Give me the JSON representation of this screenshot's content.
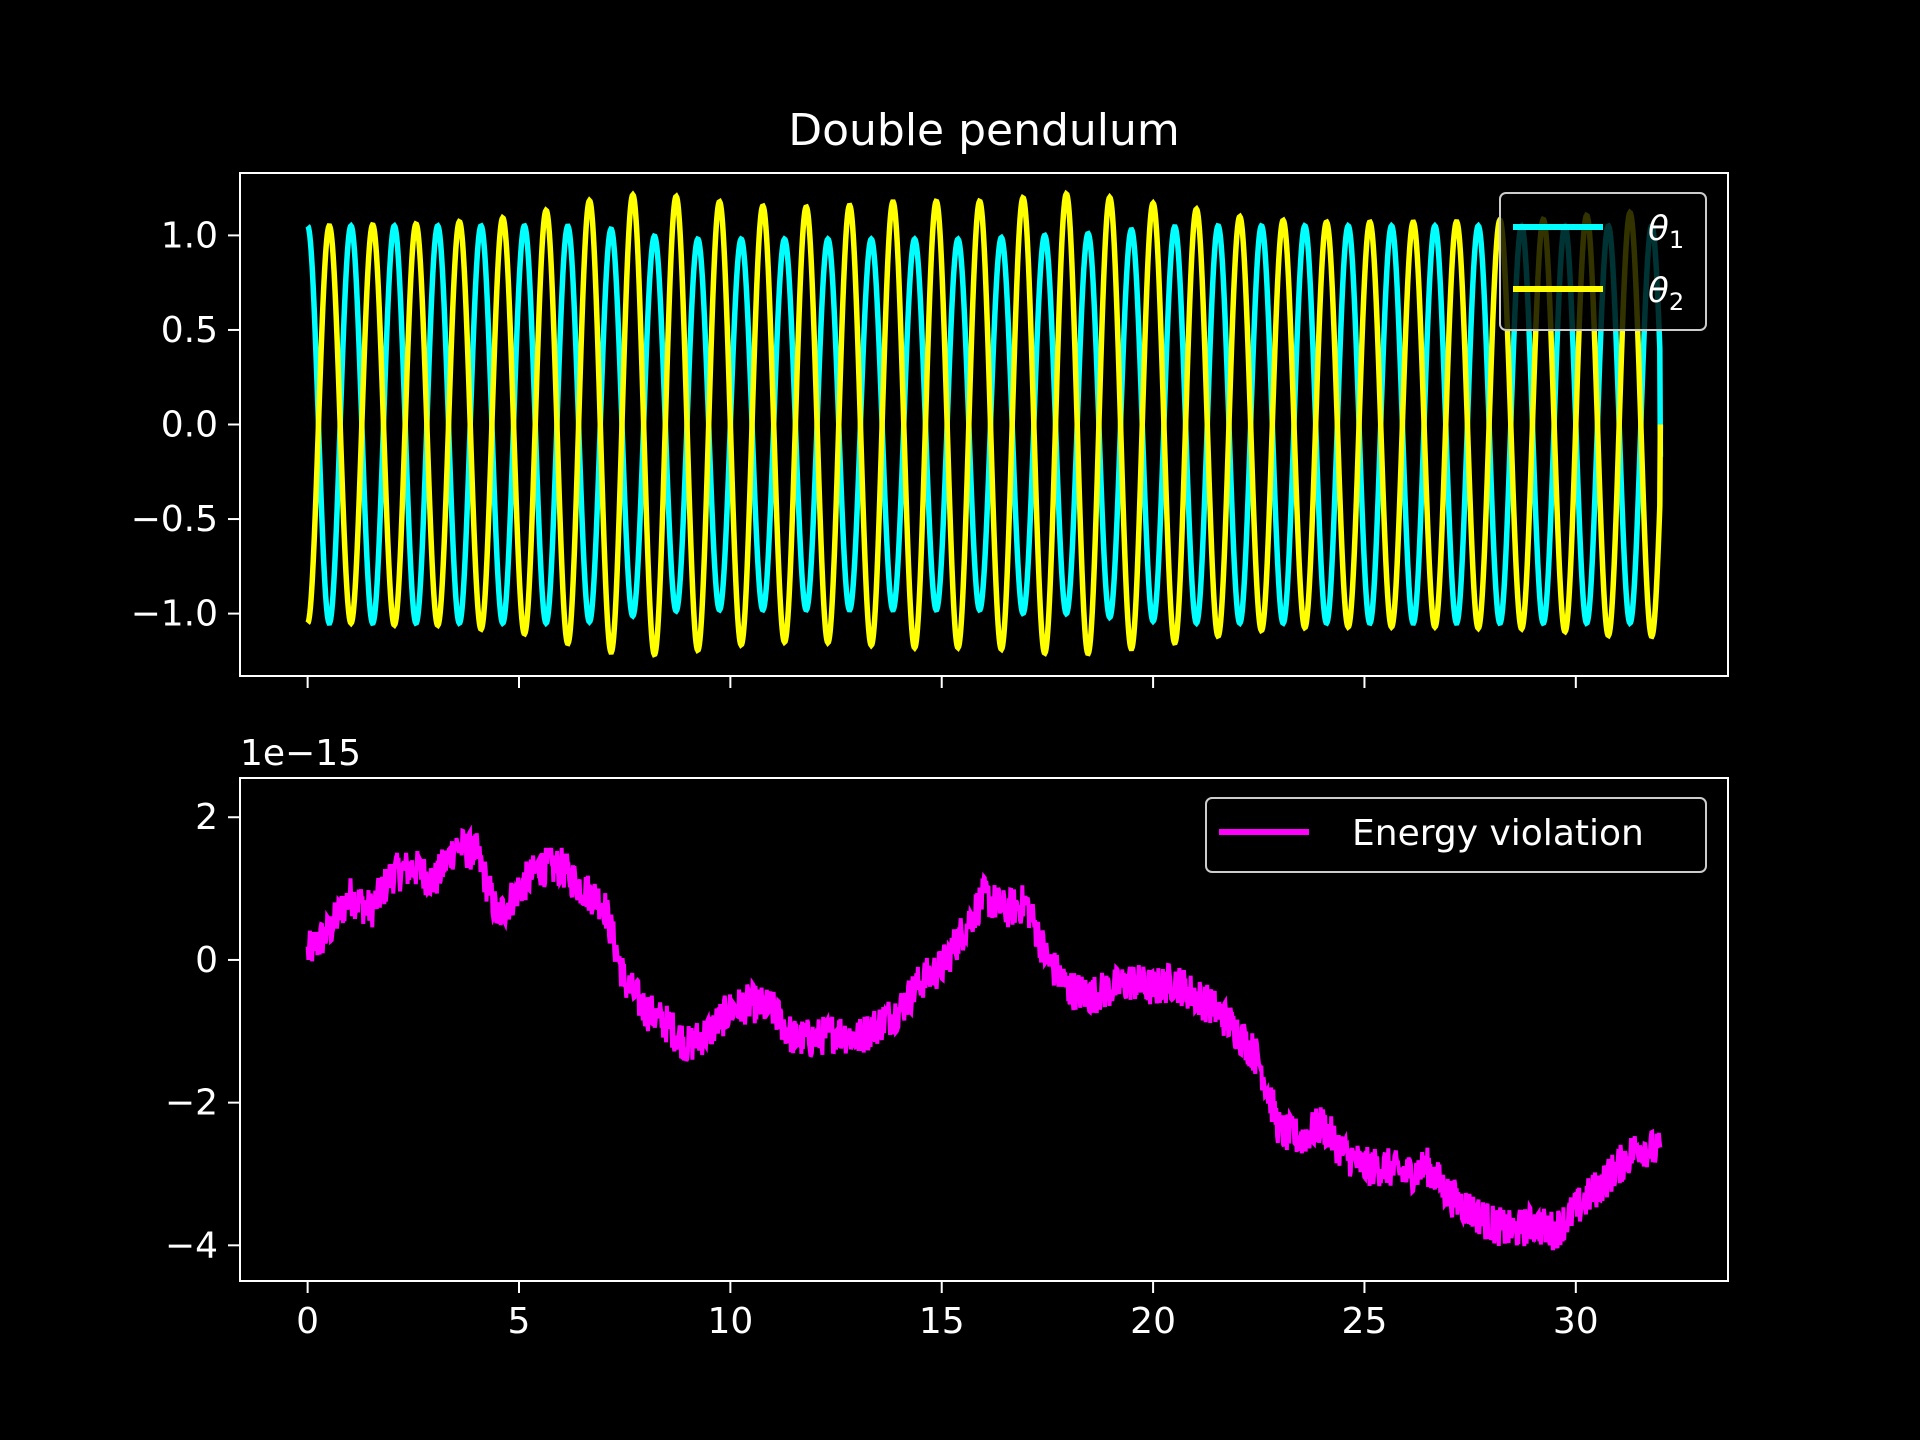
{
  "chart_data": [
    {
      "type": "line",
      "title": "Double pendulum",
      "xlabel": "",
      "ylabel": "",
      "xlim": [
        -1.6,
        33.6
      ],
      "ylim": [
        -1.33,
        1.33
      ],
      "xticks": [
        0,
        5,
        10,
        15,
        20,
        25,
        30
      ],
      "show_xtick_labels": false,
      "yticks": [
        1.0,
        0.5,
        0.0,
        -0.5,
        -1.0
      ],
      "ytick_labels": [
        "1.0",
        "0.5",
        "0.0",
        "−0.5",
        "−1.0"
      ],
      "grid": false,
      "legend_position": "top-right",
      "legend": [
        {
          "symbol": "θ",
          "subscript": "1",
          "color": "#00ffff"
        },
        {
          "symbol": "θ",
          "subscript": "2",
          "color": "#ffff00"
        }
      ],
      "series": [
        {
          "color": "#00ffff",
          "t_end": 32,
          "x": [
            0,
            0.1,
            1.0,
            2.0,
            3.0,
            4.0,
            5.0,
            6.0,
            7.0,
            8.0,
            9.0,
            10.0,
            11.0,
            12.0,
            13.0,
            14.0,
            15.0,
            16.0,
            17.0,
            18.0,
            19.0,
            20.0,
            21.0,
            22.0,
            23.0,
            24.0,
            25.0,
            26.0,
            27.0,
            28.0,
            29.0,
            30.0,
            31.0,
            32.0
          ],
          "amplitude": [
            1.05,
            1.05,
            1.05,
            1.05,
            1.05,
            1.05,
            1.05,
            1.05,
            1.04,
            1.0,
            0.98,
            0.98,
            0.98,
            0.98,
            0.98,
            0.98,
            0.98,
            0.98,
            1.0,
            1.0,
            1.02,
            1.04,
            1.05,
            1.05,
            1.05,
            1.05,
            1.05,
            1.05,
            1.05,
            1.05,
            1.05,
            1.05,
            1.05,
            1.05
          ],
          "cycles": 31.2,
          "phase": 0.0,
          "end_value": -0.17
        },
        {
          "color": "#ffff00",
          "t_end": 32,
          "x": [
            0,
            0.1,
            1.0,
            2.0,
            3.0,
            4.0,
            5.0,
            6.0,
            7.0,
            8.0,
            9.0,
            10.0,
            11.0,
            12.0,
            13.0,
            14.0,
            15.0,
            16.0,
            17.0,
            18.0,
            19.0,
            20.0,
            21.0,
            22.0,
            23.0,
            24.0,
            25.0,
            26.0,
            27.0,
            28.0,
            29.0,
            30.0,
            31.0,
            32.0
          ],
          "amplitude": [
            1.05,
            1.05,
            1.05,
            1.06,
            1.06,
            1.08,
            1.1,
            1.15,
            1.2,
            1.22,
            1.2,
            1.17,
            1.15,
            1.15,
            1.16,
            1.18,
            1.18,
            1.18,
            1.2,
            1.22,
            1.2,
            1.17,
            1.14,
            1.1,
            1.08,
            1.07,
            1.07,
            1.07,
            1.07,
            1.08,
            1.08,
            1.1,
            1.12,
            1.12
          ],
          "cycles": 31.2,
          "phase": 3.14159,
          "end_value": 0.0
        }
      ]
    },
    {
      "type": "line",
      "title": "",
      "xlabel": "",
      "ylabel": "",
      "offset_label": "1e−15",
      "xlim": [
        -1.6,
        33.6
      ],
      "ylim": [
        -4.5,
        2.55
      ],
      "xticks": [
        0,
        5,
        10,
        15,
        20,
        25,
        30
      ],
      "xtick_labels": [
        "0",
        "5",
        "10",
        "15",
        "20",
        "25",
        "30"
      ],
      "yticks": [
        2,
        0,
        -2,
        -4
      ],
      "ytick_labels": [
        "2",
        "0",
        "−2",
        "−4"
      ],
      "grid": false,
      "legend_position": "top-right",
      "legend": [
        {
          "label": "Energy violation",
          "color": "#ff00ff"
        }
      ],
      "series": [
        {
          "name": "Energy violation",
          "color": "#ff00ff",
          "x": [
            0,
            0.5,
            1.0,
            1.5,
            2.0,
            2.5,
            3.0,
            3.5,
            4.0,
            4.5,
            5.0,
            5.5,
            6.0,
            6.5,
            7.0,
            7.5,
            8.0,
            8.5,
            9.0,
            9.5,
            10.0,
            10.5,
            11.0,
            11.5,
            12.0,
            12.5,
            13.0,
            13.5,
            14.0,
            14.5,
            15.0,
            15.5,
            16.0,
            16.5,
            17.0,
            17.5,
            18.0,
            18.5,
            19.0,
            19.5,
            20.0,
            20.5,
            21.0,
            21.5,
            22.0,
            22.5,
            23.0,
            23.5,
            24.0,
            24.5,
            25.0,
            25.5,
            26.0,
            26.5,
            27.0,
            27.5,
            28.0,
            28.5,
            29.0,
            29.5,
            30.0,
            30.5,
            31.0,
            31.5,
            32.0
          ],
          "y": [
            0.1,
            0.4,
            0.9,
            0.7,
            1.2,
            1.3,
            1.1,
            1.6,
            1.5,
            0.6,
            1.0,
            1.3,
            1.3,
            1.0,
            0.8,
            -0.3,
            -0.7,
            -0.9,
            -1.2,
            -1.0,
            -0.7,
            -0.6,
            -0.7,
            -1.1,
            -1.1,
            -1.0,
            -1.1,
            -0.9,
            -0.7,
            -0.3,
            -0.1,
            0.4,
            0.9,
            0.7,
            0.8,
            0.0,
            -0.4,
            -0.5,
            -0.4,
            -0.3,
            -0.4,
            -0.3,
            -0.5,
            -0.7,
            -1.0,
            -1.4,
            -2.4,
            -2.5,
            -2.3,
            -2.7,
            -2.9,
            -2.9,
            -3.0,
            -2.9,
            -3.3,
            -3.5,
            -3.7,
            -3.8,
            -3.7,
            -3.8,
            -3.5,
            -3.2,
            -2.9,
            -2.6,
            -2.7
          ],
          "noise": 0.28
        }
      ]
    }
  ]
}
